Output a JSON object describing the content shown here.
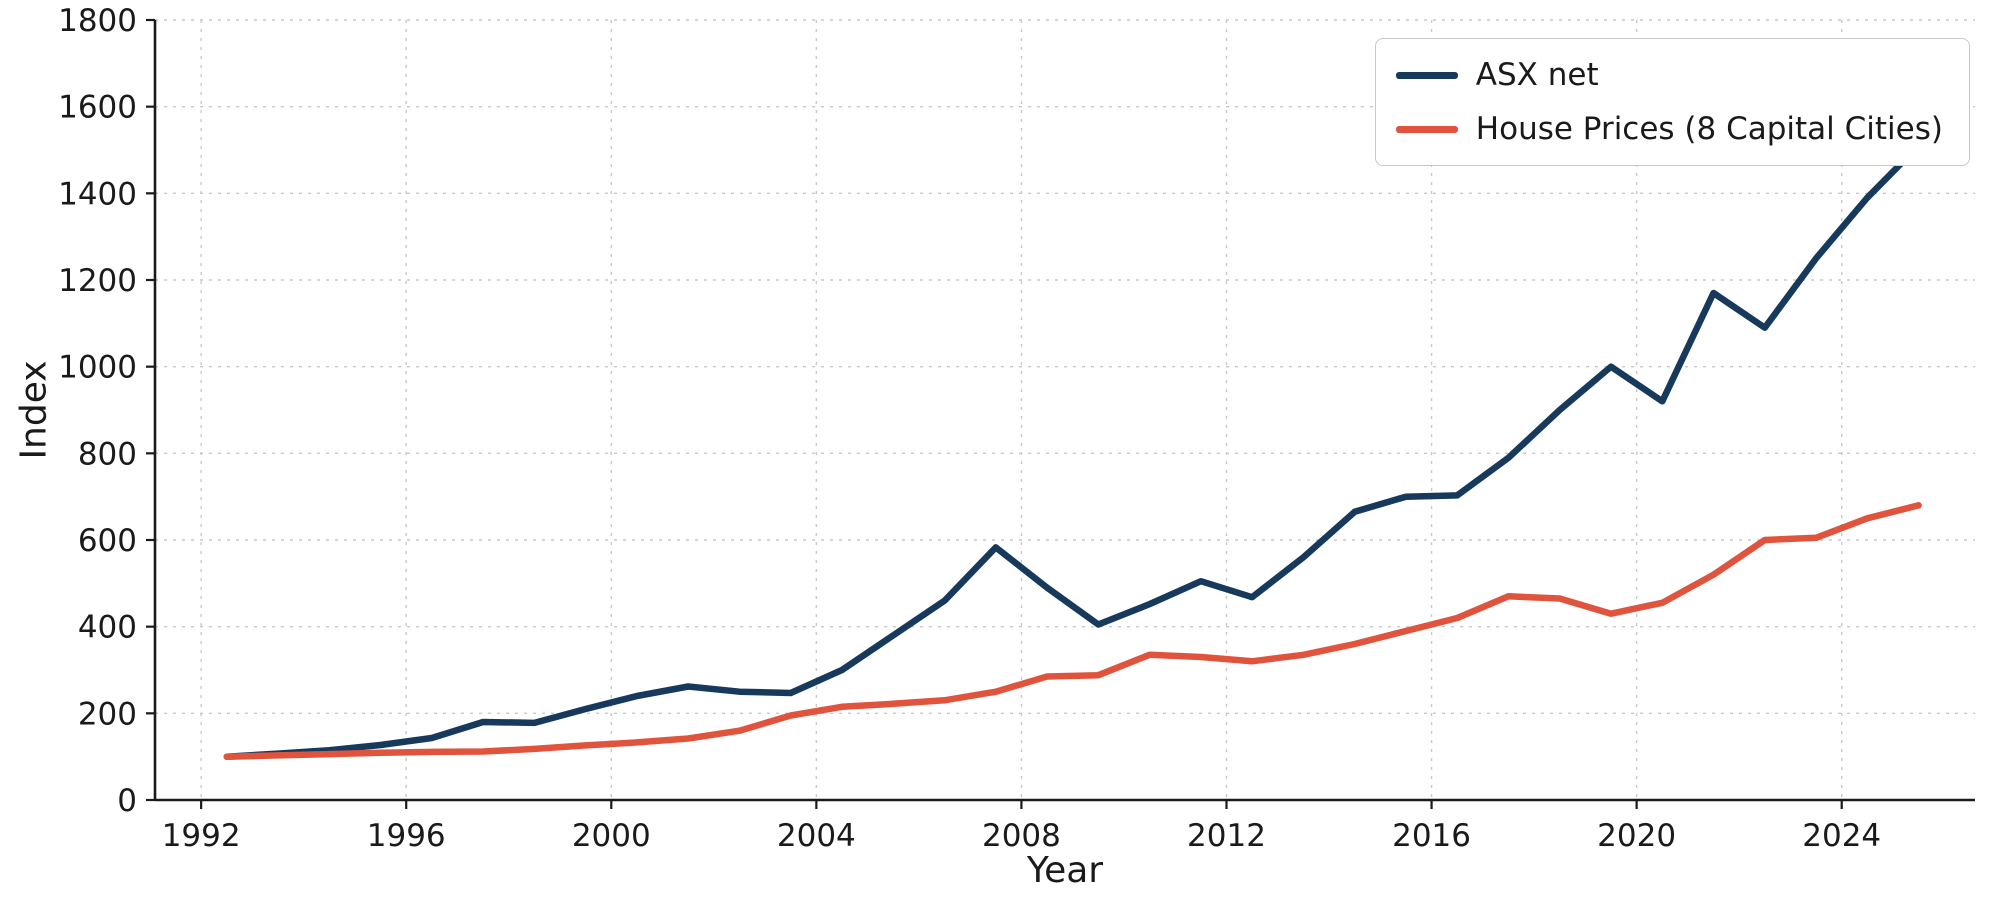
{
  "chart_data": {
    "type": "line",
    "title": "",
    "xlabel": "Year",
    "ylabel": "Index",
    "xlim": [
      1991.1,
      2026.6
    ],
    "ylim": [
      0,
      1800
    ],
    "xticks": [
      1992,
      1996,
      2000,
      2004,
      2008,
      2012,
      2016,
      2020,
      2024
    ],
    "yticks": [
      0,
      200,
      400,
      600,
      800,
      1000,
      1200,
      1400,
      1600,
      1800
    ],
    "grid": "dashed",
    "legend_position": "upper right",
    "x": [
      1992.5,
      1993.5,
      1994.5,
      1995.5,
      1996.5,
      1997.5,
      1998.5,
      1999.5,
      2000.5,
      2001.5,
      2002.5,
      2003.5,
      2004.5,
      2005.5,
      2006.5,
      2007.5,
      2008.5,
      2009.5,
      2010.5,
      2011.5,
      2012.5,
      2013.5,
      2014.5,
      2015.5,
      2016.5,
      2017.5,
      2018.5,
      2019.5,
      2020.5,
      2021.5,
      2022.5,
      2023.5,
      2024.5,
      2025.5
    ],
    "series": [
      {
        "name": "ASX net",
        "color": "#17395c",
        "data_name": "asx-net-line",
        "values": [
          100,
          107,
          115,
          127,
          143,
          180,
          178,
          210,
          240,
          262,
          250,
          247,
          300,
          380,
          460,
          583,
          490,
          405,
          452,
          505,
          468,
          560,
          665,
          700,
          703,
          790,
          900,
          1000,
          920,
          1170,
          1090,
          1250,
          1390,
          1510
        ]
      },
      {
        "name": "House Prices (8 Capital Cities)",
        "color": "#e0543e",
        "data_name": "house-prices-line",
        "values": [
          100,
          103,
          106,
          109,
          111,
          112,
          118,
          126,
          133,
          142,
          160,
          195,
          215,
          222,
          230,
          250,
          285,
          288,
          335,
          330,
          320,
          335,
          360,
          390,
          420,
          470,
          465,
          430,
          455,
          520,
          600,
          605,
          650,
          680
        ]
      }
    ],
    "colors": {
      "spine": "#1a1a1a",
      "grid": "#c9c9c9",
      "background": "#ffffff"
    }
  }
}
